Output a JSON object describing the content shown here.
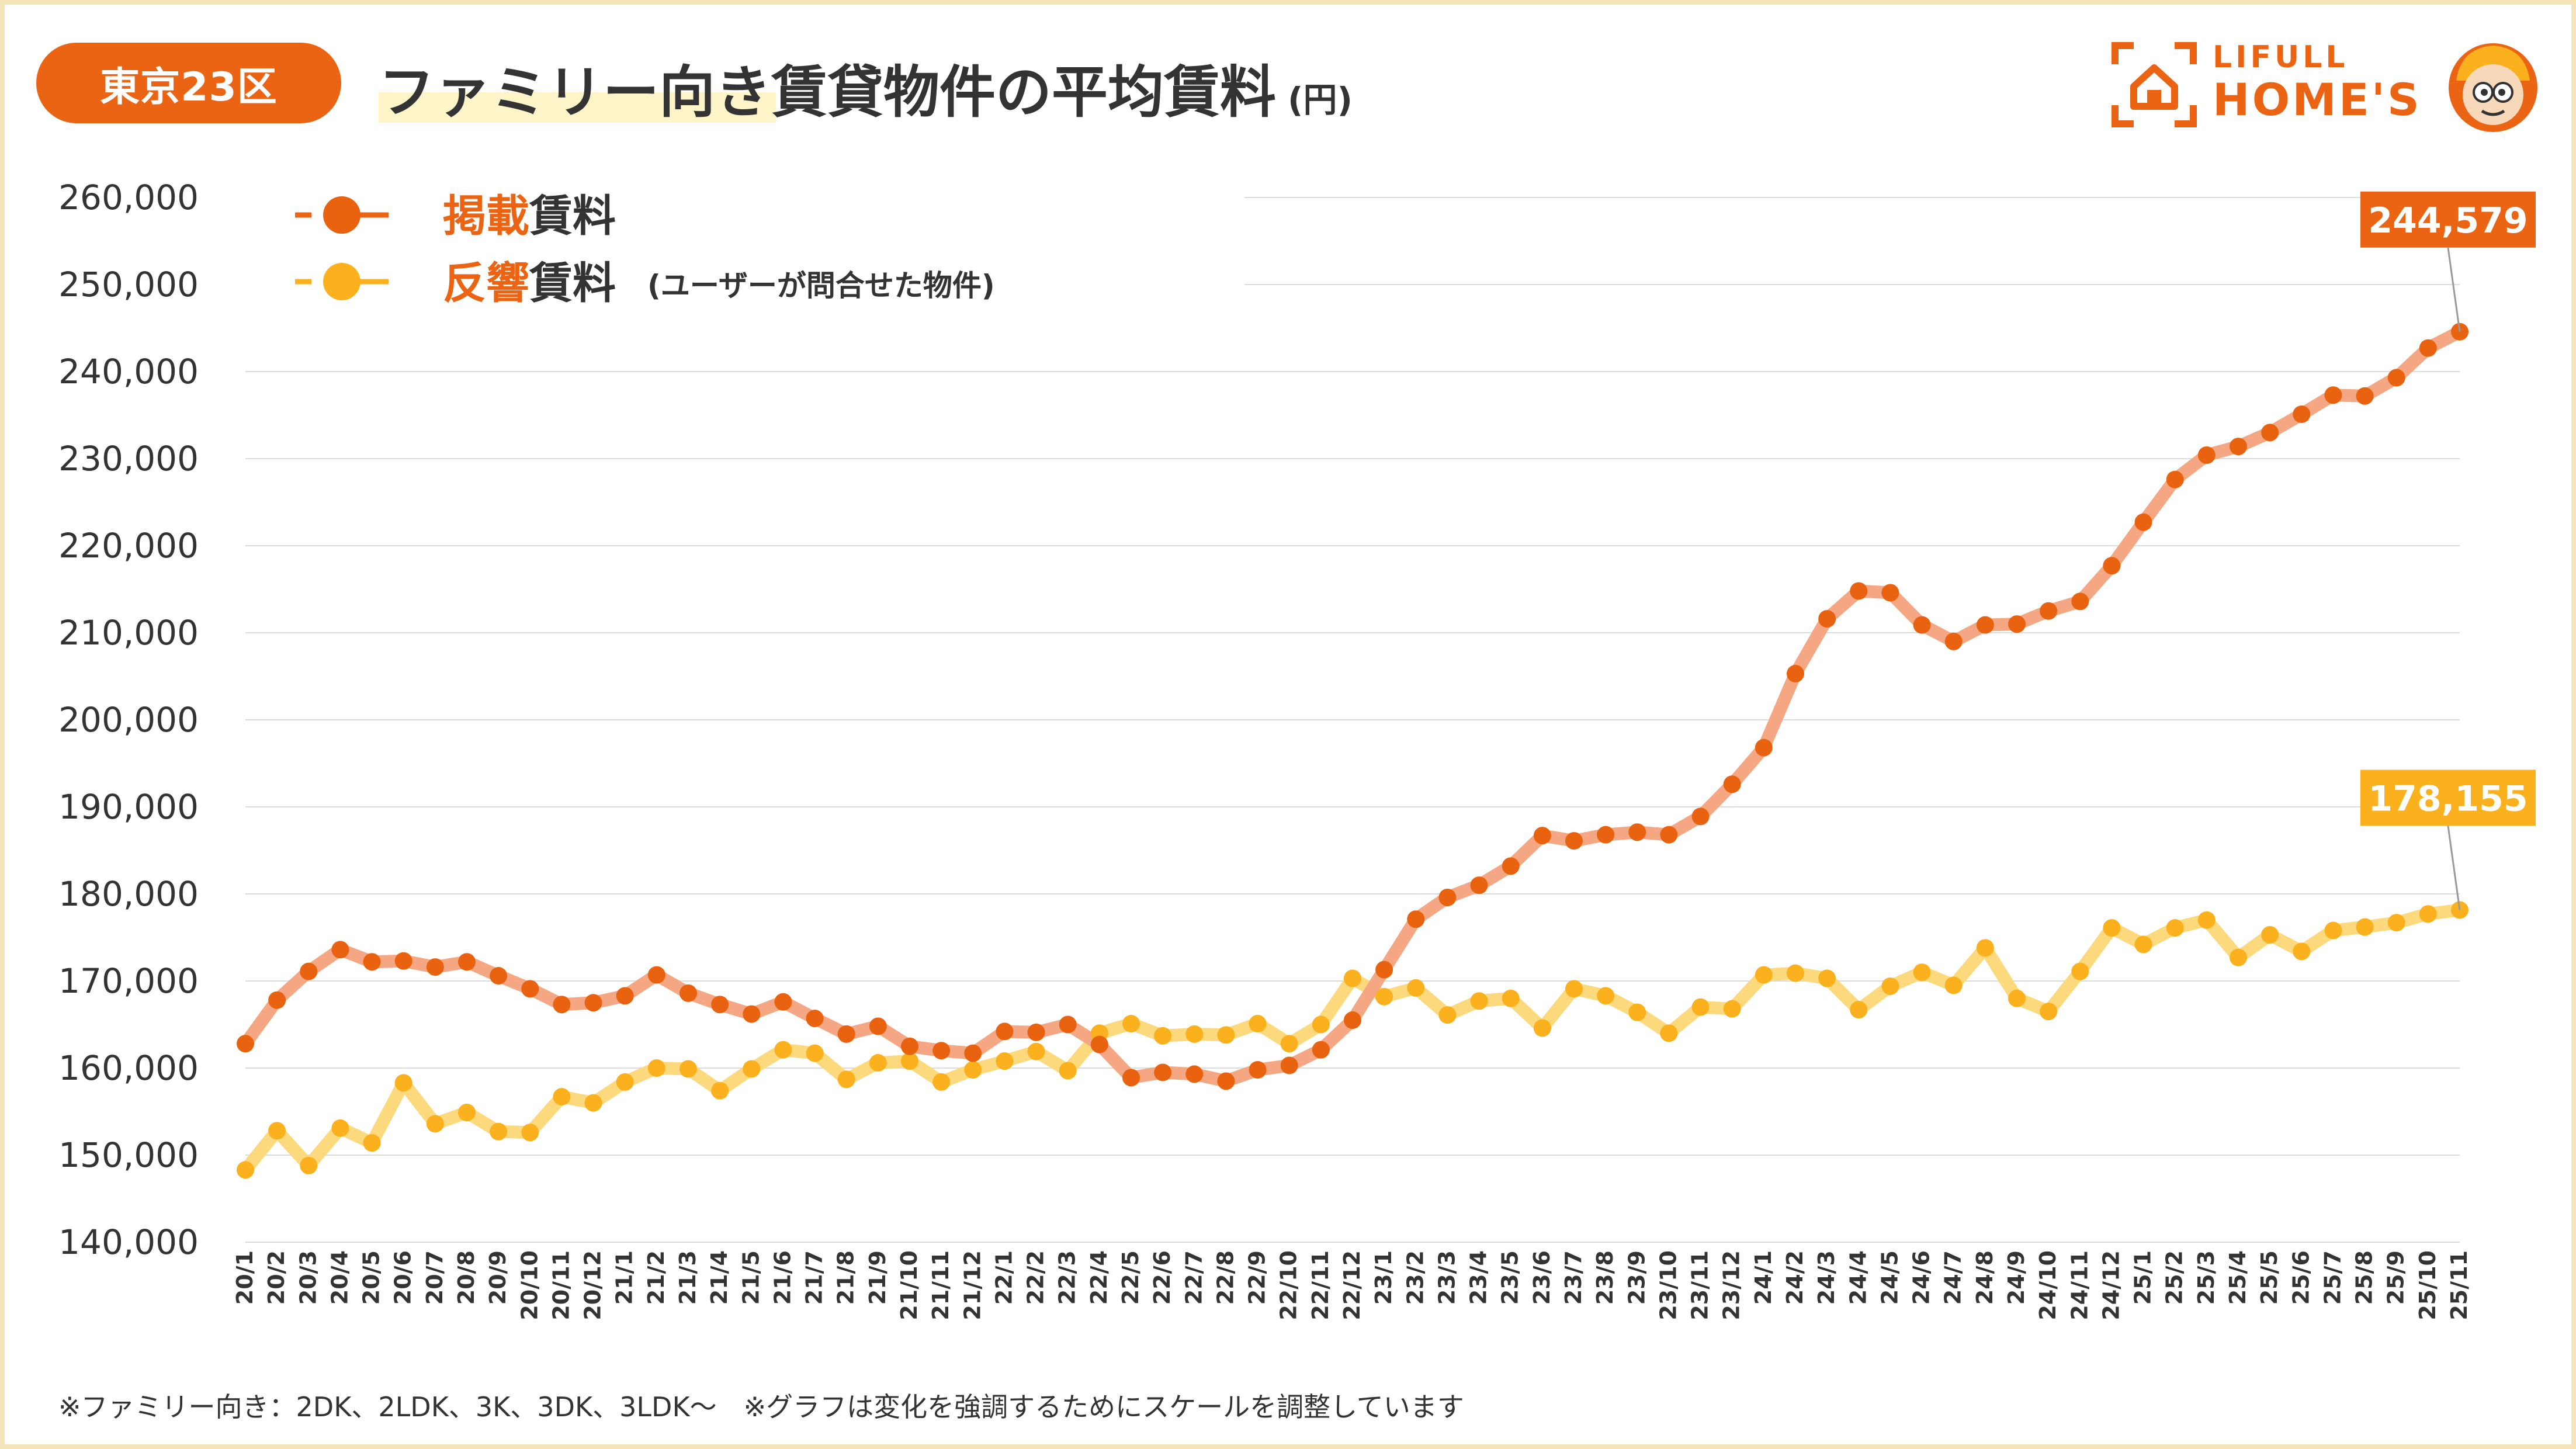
{
  "header": {
    "region": "東京23区",
    "title": "ファミリー向き賃貸物件の平均賃料",
    "unit": "(円)"
  },
  "logo": {
    "line1": "LIFULL",
    "line2": "HOME'S"
  },
  "legend": {
    "listing": {
      "marker": "-●-",
      "label_accent": "掲載",
      "label_rest": "賃料"
    },
    "response": {
      "marker": "-●-",
      "label_accent": "反響",
      "label_rest": "賃料",
      "note": "(ユーザーが問合せた物件)"
    }
  },
  "footnote": "※ファミリー向き：2DK、2LDK、3K、3DK、3LDK〜　※グラフは変化を強調するためにスケールを調整しています",
  "colors": {
    "accent_orange": "#ea6414",
    "listing_point": "#e8620f",
    "listing_line": "#f4a782",
    "response_point": "#fbb01d",
    "response_line": "#fcd97c",
    "frame": "#f6e3ba"
  },
  "chart_data": {
    "type": "line",
    "xlabel": "",
    "ylabel": "",
    "ylim": [
      140000,
      260000
    ],
    "yticks": [
      "260,000",
      "250,000",
      "240,000",
      "230,000",
      "220,000",
      "210,000",
      "200,000",
      "190,000",
      "180,000",
      "170,000",
      "160,000",
      "150,000",
      "140,000"
    ],
    "grid": "horizontal",
    "legend_position": "top-left",
    "categories": [
      "20/1",
      "20/2",
      "20/3",
      "20/4",
      "20/5",
      "20/6",
      "20/7",
      "20/8",
      "20/9",
      "20/10",
      "20/11",
      "20/12",
      "21/1",
      "21/2",
      "21/3",
      "21/4",
      "21/5",
      "21/6",
      "21/7",
      "21/8",
      "21/9",
      "21/10",
      "21/11",
      "21/12",
      "22/1",
      "22/2",
      "22/3",
      "22/4",
      "22/5",
      "22/6",
      "22/7",
      "22/8",
      "22/9",
      "22/10",
      "22/11",
      "22/12",
      "23/1",
      "23/2",
      "23/3",
      "23/4",
      "23/5",
      "23/6",
      "23/7",
      "23/8",
      "23/9",
      "23/10",
      "23/11",
      "23/12",
      "24/1",
      "24/2",
      "24/3",
      "24/4",
      "24/5",
      "24/6",
      "24/7",
      "24/8",
      "24/9",
      "24/10",
      "24/11",
      "24/12",
      "25/1",
      "25/2",
      "25/3",
      "25/4",
      "25/5",
      "25/6",
      "25/7",
      "25/8",
      "25/9",
      "25/10",
      "25/11"
    ],
    "series": [
      {
        "name": "掲載賃料",
        "values": [
          162800,
          167800,
          171100,
          173600,
          172200,
          172300,
          171600,
          172200,
          170600,
          169100,
          167300,
          167500,
          168300,
          170700,
          168600,
          167300,
          166200,
          167600,
          165700,
          163900,
          164800,
          162500,
          162000,
          161700,
          164200,
          164100,
          165000,
          162700,
          158900,
          159500,
          159300,
          158500,
          159800,
          160300,
          162100,
          165500,
          171300,
          177100,
          179600,
          181000,
          183200,
          186700,
          186100,
          186800,
          187100,
          186800,
          188900,
          192600,
          196800,
          205300,
          211600,
          214800,
          214600,
          210900,
          209000,
          210900,
          211000,
          212500,
          213600,
          217700,
          222700,
          227600,
          230400,
          231400,
          233000,
          235100,
          237300,
          237200,
          239300,
          242700,
          244579
        ],
        "callout": "244,579"
      },
      {
        "name": "反響賃料",
        "values": [
          148300,
          152800,
          148800,
          153100,
          151400,
          158300,
          153600,
          154900,
          152700,
          152600,
          156700,
          156000,
          158400,
          160000,
          159900,
          157400,
          159900,
          162100,
          161700,
          158700,
          160600,
          160800,
          158400,
          159800,
          160800,
          161900,
          159700,
          164000,
          165100,
          163700,
          163900,
          163800,
          165100,
          162800,
          165000,
          170300,
          168200,
          169200,
          166100,
          167700,
          168000,
          164600,
          169100,
          168300,
          166400,
          164000,
          167000,
          166800,
          170700,
          170900,
          170300,
          166700,
          169400,
          171000,
          169500,
          173800,
          168000,
          166500,
          171100,
          176100,
          174200,
          176100,
          177000,
          172700,
          175300,
          173400,
          175800,
          176200,
          176700,
          177700,
          178155
        ],
        "callout": "178,155"
      }
    ]
  }
}
